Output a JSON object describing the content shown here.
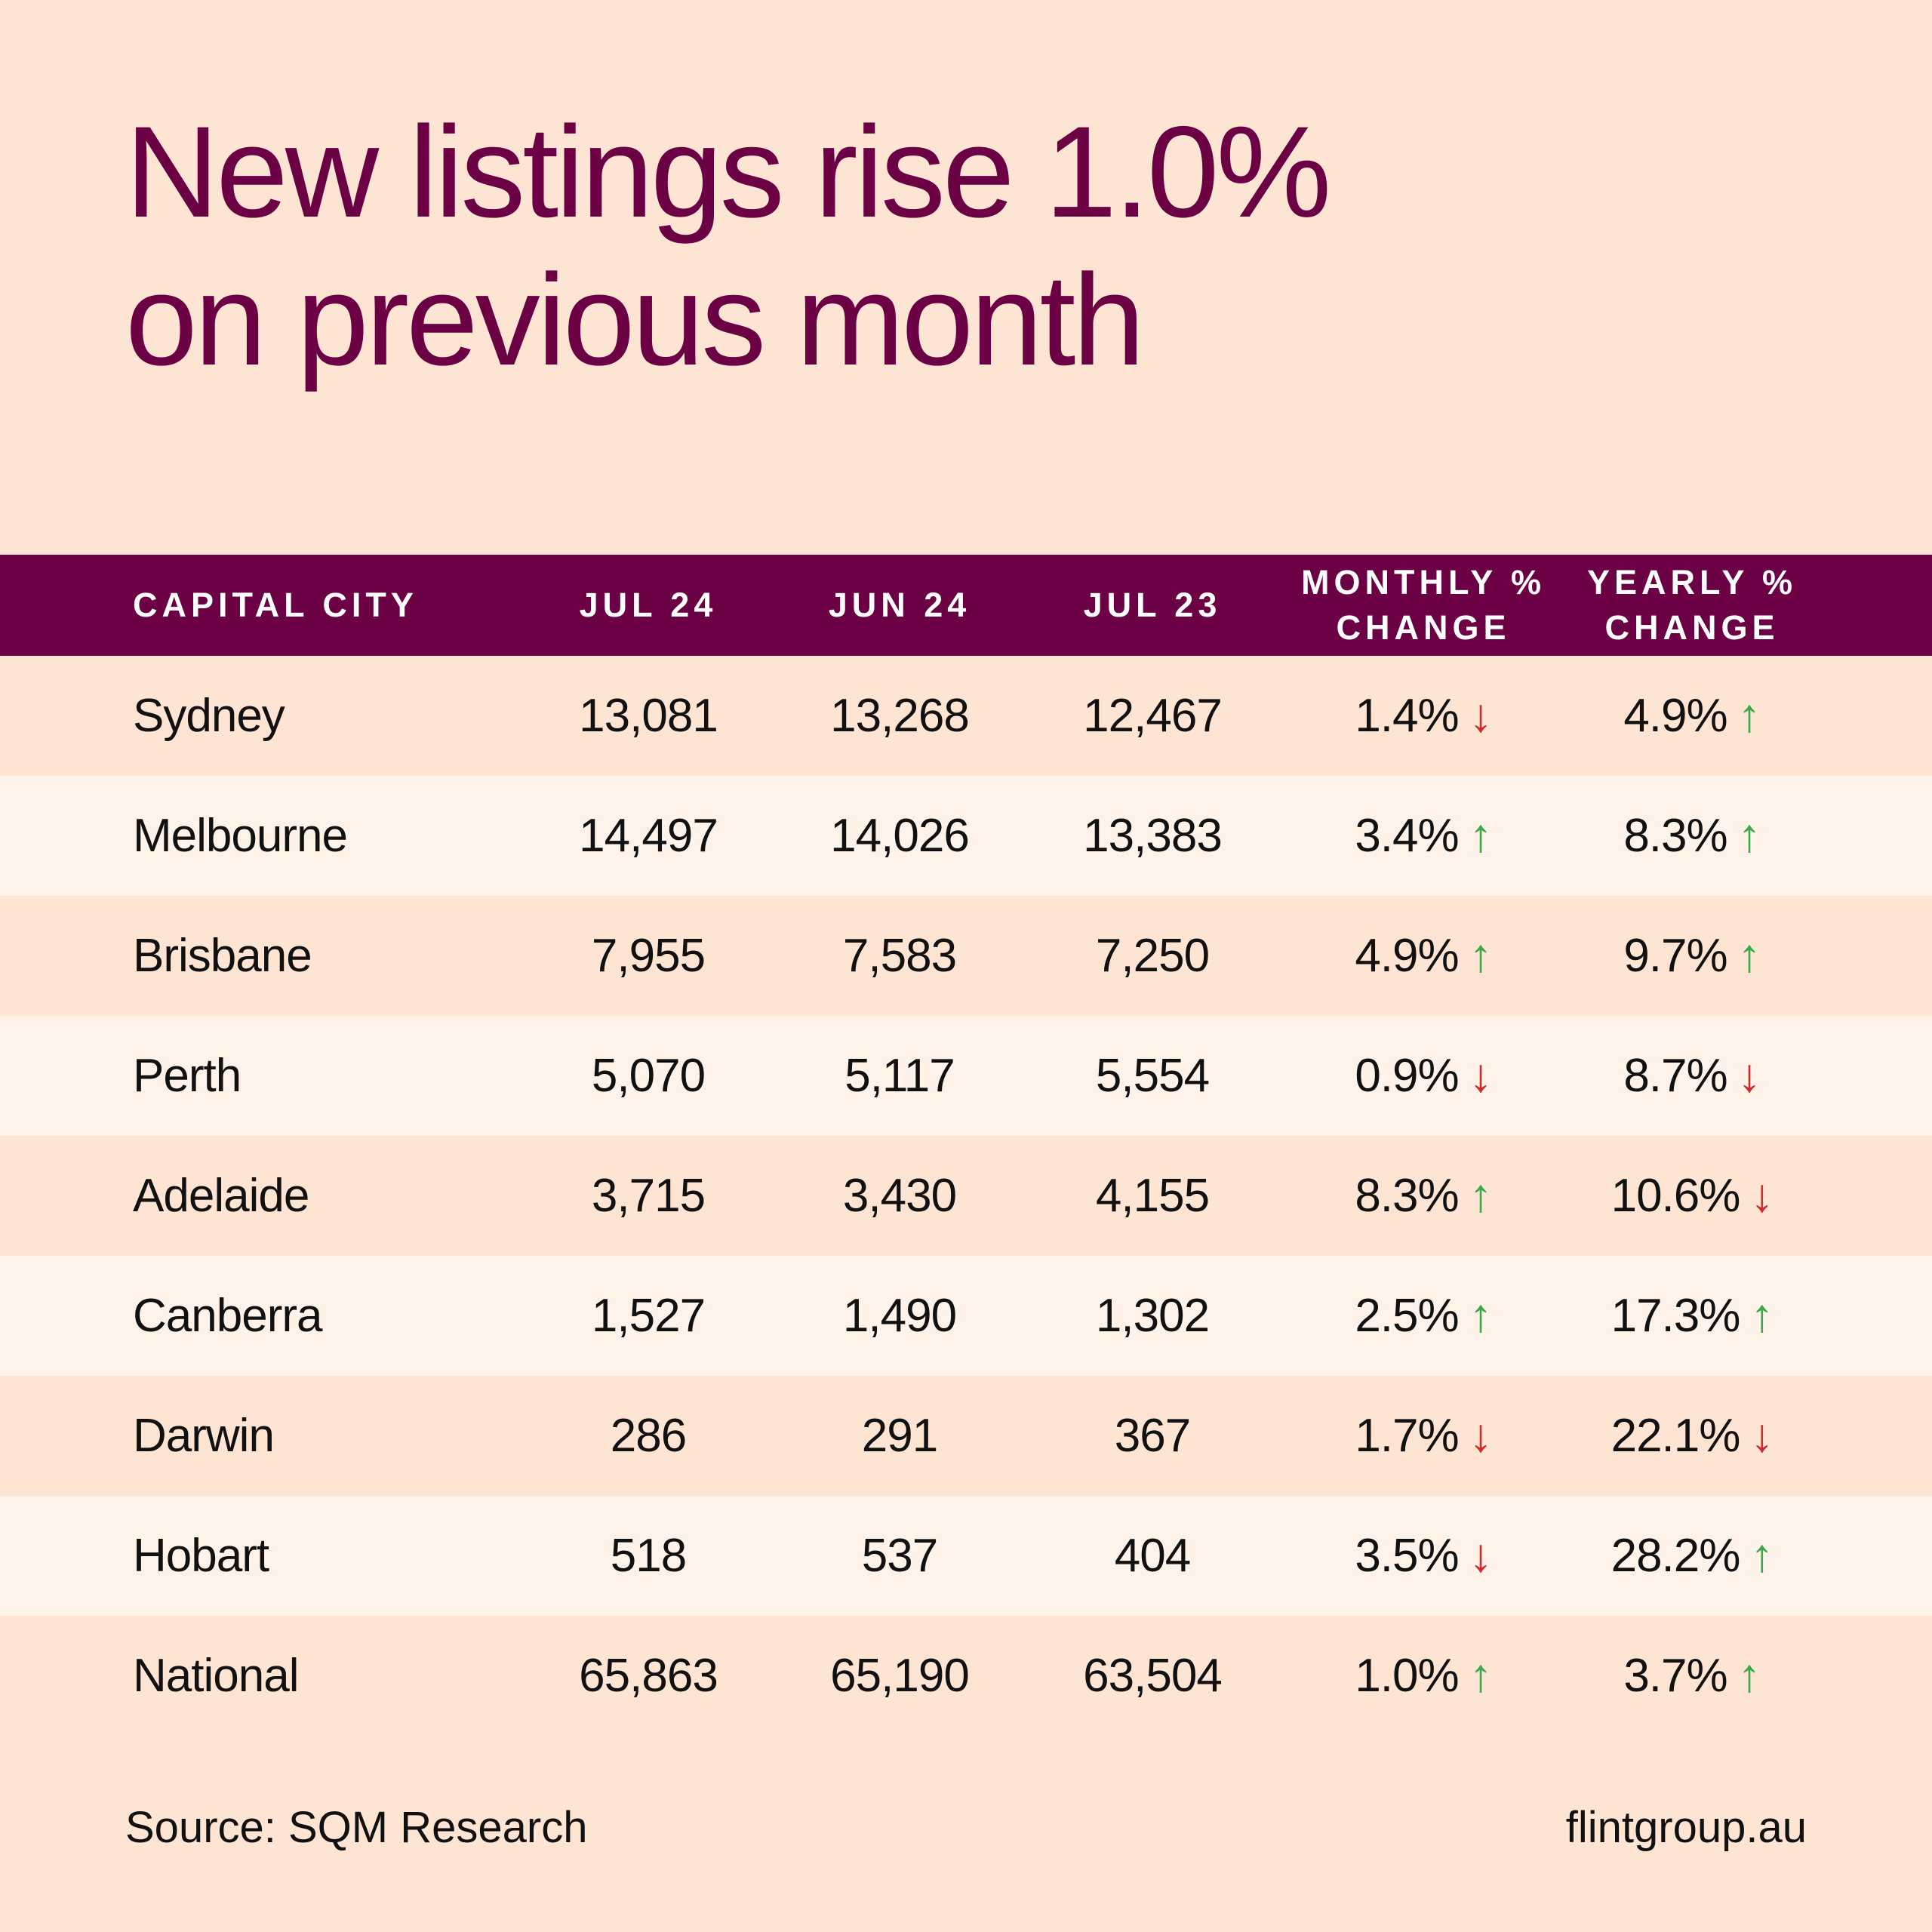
{
  "title": {
    "line1": "New listings rise 1.0%",
    "line2": "on previous month"
  },
  "table": {
    "headers": [
      "CAPITAL CITY",
      "JUL 24",
      "JUN 24",
      "JUL 23",
      "MONTHLY % CHANGE",
      "YEARLY % CHANGE"
    ],
    "rows": [
      {
        "city": "Sydney",
        "jul24": "13,081",
        "jun24": "13,268",
        "jul23": "12,467",
        "monthly": "1.4%",
        "monthly_dir": "down",
        "yearly": "4.9%",
        "yearly_dir": "up"
      },
      {
        "city": "Melbourne",
        "jul24": "14,497",
        "jun24": "14,026",
        "jul23": "13,383",
        "monthly": "3.4%",
        "monthly_dir": "up",
        "yearly": "8.3%",
        "yearly_dir": "up"
      },
      {
        "city": "Brisbane",
        "jul24": "7,955",
        "jun24": "7,583",
        "jul23": "7,250",
        "monthly": "4.9%",
        "monthly_dir": "up",
        "yearly": "9.7%",
        "yearly_dir": "up"
      },
      {
        "city": "Perth",
        "jul24": "5,070",
        "jun24": "5,117",
        "jul23": "5,554",
        "monthly": "0.9%",
        "monthly_dir": "down",
        "yearly": "8.7%",
        "yearly_dir": "down"
      },
      {
        "city": "Adelaide",
        "jul24": "3,715",
        "jun24": "3,430",
        "jul23": "4,155",
        "monthly": "8.3%",
        "monthly_dir": "up",
        "yearly": "10.6%",
        "yearly_dir": "down"
      },
      {
        "city": "Canberra",
        "jul24": "1,527",
        "jun24": "1,490",
        "jul23": "1,302",
        "monthly": "2.5%",
        "monthly_dir": "up",
        "yearly": "17.3%",
        "yearly_dir": "up"
      },
      {
        "city": "Darwin",
        "jul24": "286",
        "jun24": "291",
        "jul23": "367",
        "monthly": "1.7%",
        "monthly_dir": "down",
        "yearly": "22.1%",
        "yearly_dir": "down"
      },
      {
        "city": "Hobart",
        "jul24": "518",
        "jun24": "537",
        "jul23": "404",
        "monthly": "3.5%",
        "monthly_dir": "down",
        "yearly": "28.2%",
        "yearly_dir": "up"
      },
      {
        "city": "National",
        "jul24": "65,863",
        "jun24": "65,190",
        "jul23": "63,504",
        "monthly": "1.0%",
        "monthly_dir": "up",
        "yearly": "3.7%",
        "yearly_dir": "up"
      }
    ]
  },
  "colors": {
    "brand": "#6b0044",
    "up": "#3aaa48",
    "down": "#d32a2a",
    "background": "#fee4d3",
    "row_alt": "#fff2e8"
  },
  "footer": {
    "source": "Source: SQM Research",
    "website": "flintgroup.au"
  }
}
